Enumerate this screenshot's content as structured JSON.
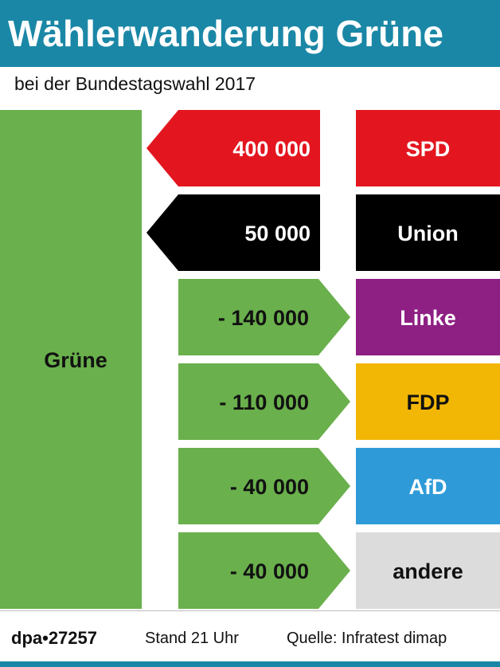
{
  "header": {
    "title": "Wählerwanderung Grüne",
    "subtitle": "bei der Bundestagswahl 2017"
  },
  "chart_data": {
    "type": "bar",
    "title": "Wählerwanderung Grüne",
    "subtitle": "bei der Bundestagswahl 2017",
    "center_party": "Grüne",
    "center_color": "#6ab04c",
    "flows": [
      {
        "party": "SPD",
        "value": 400000,
        "label": "400 000",
        "direction": "in",
        "color": "#e3161f",
        "arrow_color": "#e3161f",
        "text_color": "#ffffff",
        "label_color": "#ffffff"
      },
      {
        "party": "Union",
        "value": 50000,
        "label": "50 000",
        "direction": "in",
        "color": "#000000",
        "arrow_color": "#000000",
        "text_color": "#ffffff",
        "label_color": "#ffffff"
      },
      {
        "party": "Linke",
        "value": -140000,
        "label": "- 140 000",
        "direction": "out",
        "color": "#8e1f83",
        "arrow_color": "#6ab04c",
        "text_color": "#ffffff",
        "label_color": "#111111"
      },
      {
        "party": "FDP",
        "value": -110000,
        "label": "- 110 000",
        "direction": "out",
        "color": "#f2b705",
        "arrow_color": "#6ab04c",
        "text_color": "#111111",
        "label_color": "#111111"
      },
      {
        "party": "AfD",
        "value": -40000,
        "label": "- 40 000",
        "direction": "out",
        "color": "#2e9bd8",
        "arrow_color": "#6ab04c",
        "text_color": "#ffffff",
        "label_color": "#111111"
      },
      {
        "party": "andere",
        "value": -40000,
        "label": "- 40 000",
        "direction": "out",
        "color": "#dcdcdc",
        "arrow_color": "#6ab04c",
        "text_color": "#111111",
        "label_color": "#111111"
      }
    ]
  },
  "footer": {
    "agency": "dpa•27257",
    "stand": "Stand 21 Uhr",
    "source": "Quelle: Infratest dimap"
  },
  "colors": {
    "brand": "#1a87a6"
  }
}
